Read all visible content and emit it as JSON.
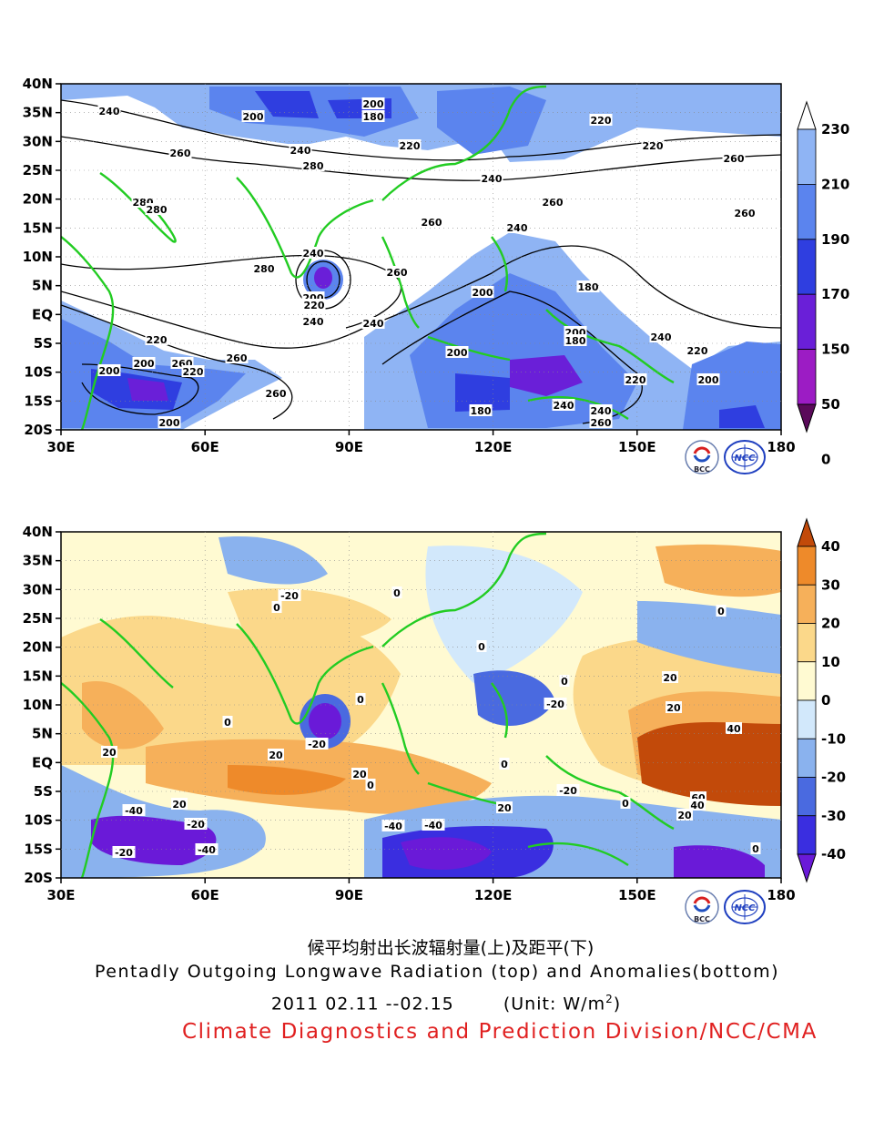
{
  "top_map": {
    "x_ticks": [
      "30E",
      "60E",
      "90E",
      "120E",
      "150E",
      "180"
    ],
    "y_ticks": [
      "40N",
      "35N",
      "30N",
      "25N",
      "20N",
      "15N",
      "10N",
      "5N",
      "EQ",
      "5S",
      "10S",
      "15S",
      "20S"
    ],
    "contour_labels": [
      "240",
      "200",
      "200",
      "180",
      "220",
      "260",
      "240",
      "280",
      "220",
      "240",
      "260",
      "260",
      "280",
      "280",
      "260",
      "240",
      "260",
      "280",
      "220",
      "200",
      "240",
      "220",
      "260",
      "200",
      "180",
      "200",
      "240",
      "220",
      "200",
      "260",
      "240",
      "200",
      "180",
      "220",
      "240",
      "200",
      "260",
      "240",
      "180",
      "200",
      "220",
      "200",
      "240",
      "260",
      "220",
      "260"
    ],
    "colorbar": {
      "levels": [
        "230",
        "210",
        "190",
        "170",
        "150",
        "50",
        "0"
      ],
      "colors": [
        "#ffffff",
        "#8fb4f4",
        "#5b84ee",
        "#2f3ee0",
        "#6a1fd8",
        "#9c1cc4",
        "#5a0a5a"
      ]
    }
  },
  "bottom_map": {
    "x_ticks": [
      "30E",
      "60E",
      "90E",
      "120E",
      "150E",
      "180"
    ],
    "y_ticks": [
      "40N",
      "35N",
      "30N",
      "25N",
      "20N",
      "15N",
      "10N",
      "5N",
      "EQ",
      "5S",
      "10S",
      "15S",
      "20S"
    ],
    "contour_labels": [
      "-20",
      "0",
      "0",
      "0",
      "20",
      "0",
      "0",
      "-20",
      "20",
      "0",
      "20",
      "40",
      "20",
      "-20",
      "20",
      "0",
      "-20",
      "0",
      "20",
      "-40",
      "-20",
      "-40",
      "-20",
      "-40",
      "0",
      "20",
      "0",
      "60",
      "40",
      "20",
      "0",
      "-40"
    ],
    "colorbar": {
      "levels": [
        "40",
        "30",
        "20",
        "10",
        "0",
        "-10",
        "-20",
        "-30",
        "-40"
      ],
      "colors": [
        "#c24a0a",
        "#ee8a2a",
        "#f6b05a",
        "#fbd88a",
        "#fffad2",
        "#d2e8fb",
        "#8ab2ee",
        "#4a6ae0",
        "#3a2ee0",
        "#6a1ad8"
      ]
    }
  },
  "logos": {
    "left": "BCC",
    "right": "NCC"
  },
  "caption": {
    "chinese": "候平均射出长波辐射量(上)及距平(下)",
    "english": "Pentadly Outgoing Longwave Radiation (top) and Anomalies(bottom)",
    "date": "2011  02.11 --02.15",
    "unit": "(Unit: W/m",
    "unit_sup": "2",
    "unit_end": ")",
    "division": "Climate Diagnostics and Prediction Division/NCC/CMA"
  }
}
